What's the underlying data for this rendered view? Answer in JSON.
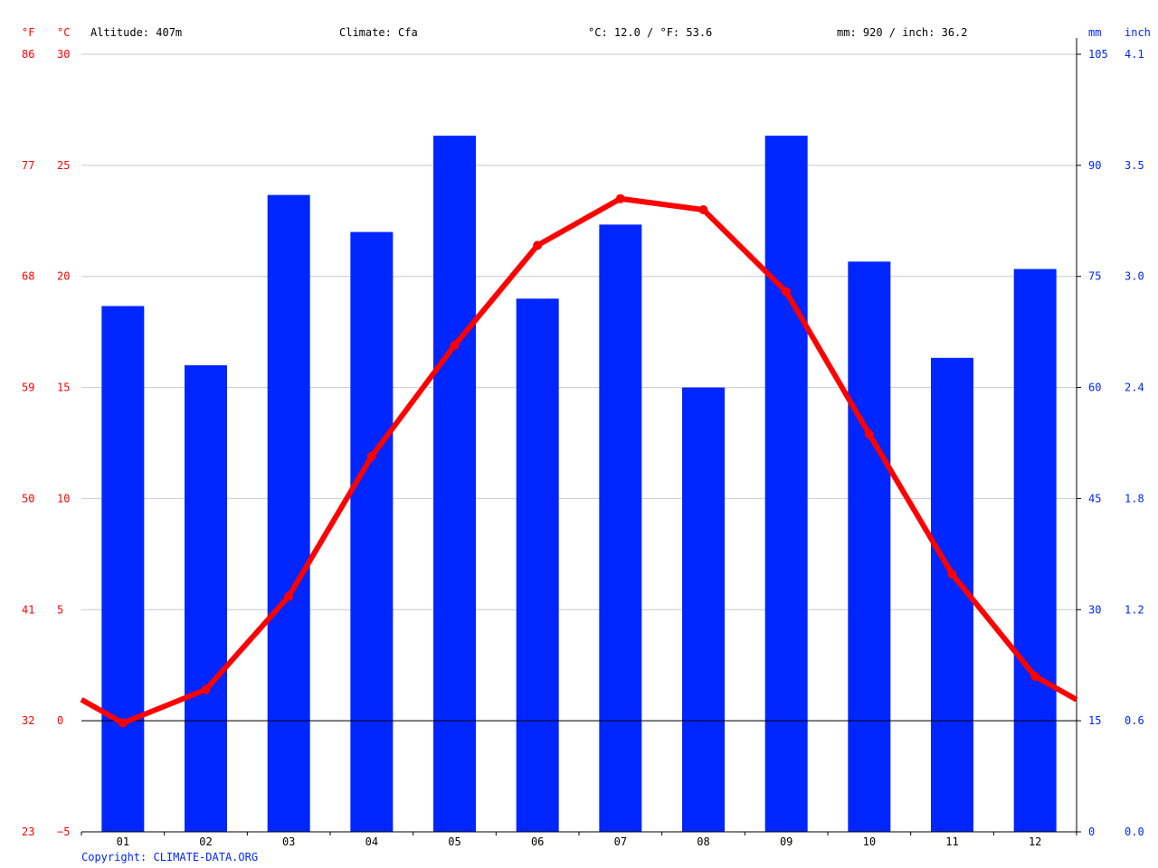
{
  "chart_data": {
    "type": "bar",
    "header": {
      "altitude": "Altitude: 407m",
      "climate": "Climate: Cfa",
      "temp_avg": "°C: 12.0 / °F: 53.6",
      "precip_total": "mm: 920 / inch: 36.2"
    },
    "units": {
      "fahrenheit": "°F",
      "celsius": "°C",
      "mm": "mm",
      "inch": "inch"
    },
    "categories": [
      "01",
      "02",
      "03",
      "04",
      "05",
      "06",
      "07",
      "08",
      "09",
      "10",
      "11",
      "12"
    ],
    "series": [
      {
        "type": "bar",
        "axis": "right",
        "values": [
          71,
          63,
          86,
          81,
          94,
          72,
          82,
          60,
          94,
          77,
          64,
          76
        ]
      },
      {
        "type": "line",
        "axis": "left",
        "values": [
          -0.1,
          1.4,
          5.6,
          11.9,
          16.9,
          21.4,
          23.5,
          23.0,
          19.3,
          12.9,
          6.6,
          2.0
        ]
      }
    ],
    "temp_ylim": [
      -5,
      30
    ],
    "precip_ylim": [
      0,
      105
    ],
    "celsius_ticks": [
      "30",
      "25",
      "20",
      "15",
      "10",
      "5",
      "0",
      "−5"
    ],
    "fahrenheit_ticks": [
      "86",
      "77",
      "68",
      "59",
      "50",
      "41",
      "32",
      "23"
    ],
    "mm_ticks": [
      "105",
      "90",
      "75",
      "60",
      "45",
      "30",
      "15",
      "0"
    ],
    "inch_ticks": [
      "4.1",
      "3.5",
      "3.0",
      "2.4",
      "1.8",
      "1.2",
      "0.6",
      "0.0"
    ],
    "grid": true,
    "colors": {
      "bars": "#0026ff",
      "line": "#ff0000",
      "temp_labels": "#ff0000",
      "precip_labels": "#0026ff",
      "copyright": "#0026ff"
    }
  },
  "footer": {
    "copyright": "Copyright: CLIMATE-DATA.ORG"
  }
}
